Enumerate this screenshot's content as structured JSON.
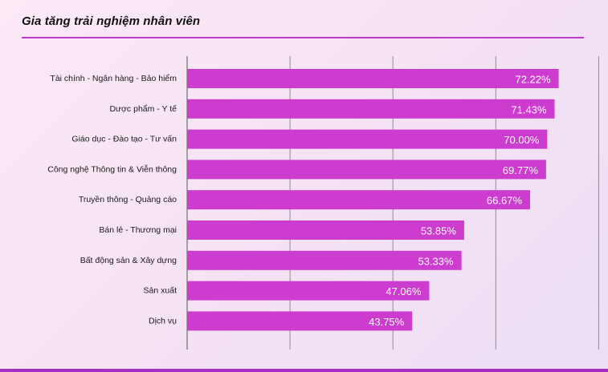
{
  "header": {
    "title": "Gia tăng trải nghiệm nhân viên"
  },
  "colors": {
    "bar": "#cc3ccf",
    "accent_rule": "#c13ad0",
    "gridline": "#8e8e8e",
    "value_text": "#ffffff"
  },
  "chart_data": {
    "type": "bar",
    "orientation": "horizontal",
    "title": "Gia tăng trải nghiệm nhân viên",
    "categories": [
      "Tài chính  - Ngân hàng -  Bảo hiểm",
      "Dược phẩm - Y tế",
      "Giáo dục - Đào tạo - Tư vấn",
      "Công nghệ Thông tin & Viễn thông",
      "Truyền thông - Quảng cáo",
      "Bán lẻ - Thương mại",
      "Bất động sản & Xây dựng",
      "Sản xuất",
      "Dịch vụ"
    ],
    "values": [
      72.22,
      71.43,
      70.0,
      69.77,
      66.67,
      53.85,
      53.33,
      47.06,
      43.75
    ],
    "value_labels": [
      "72.22%",
      "71.43%",
      "70.00%",
      "69.77%",
      "66.67%",
      "53.85%",
      "53.33%",
      "47.06%",
      "43.75%"
    ],
    "xlim": [
      0,
      80
    ],
    "grid": true,
    "data_labels": "inside-end"
  }
}
